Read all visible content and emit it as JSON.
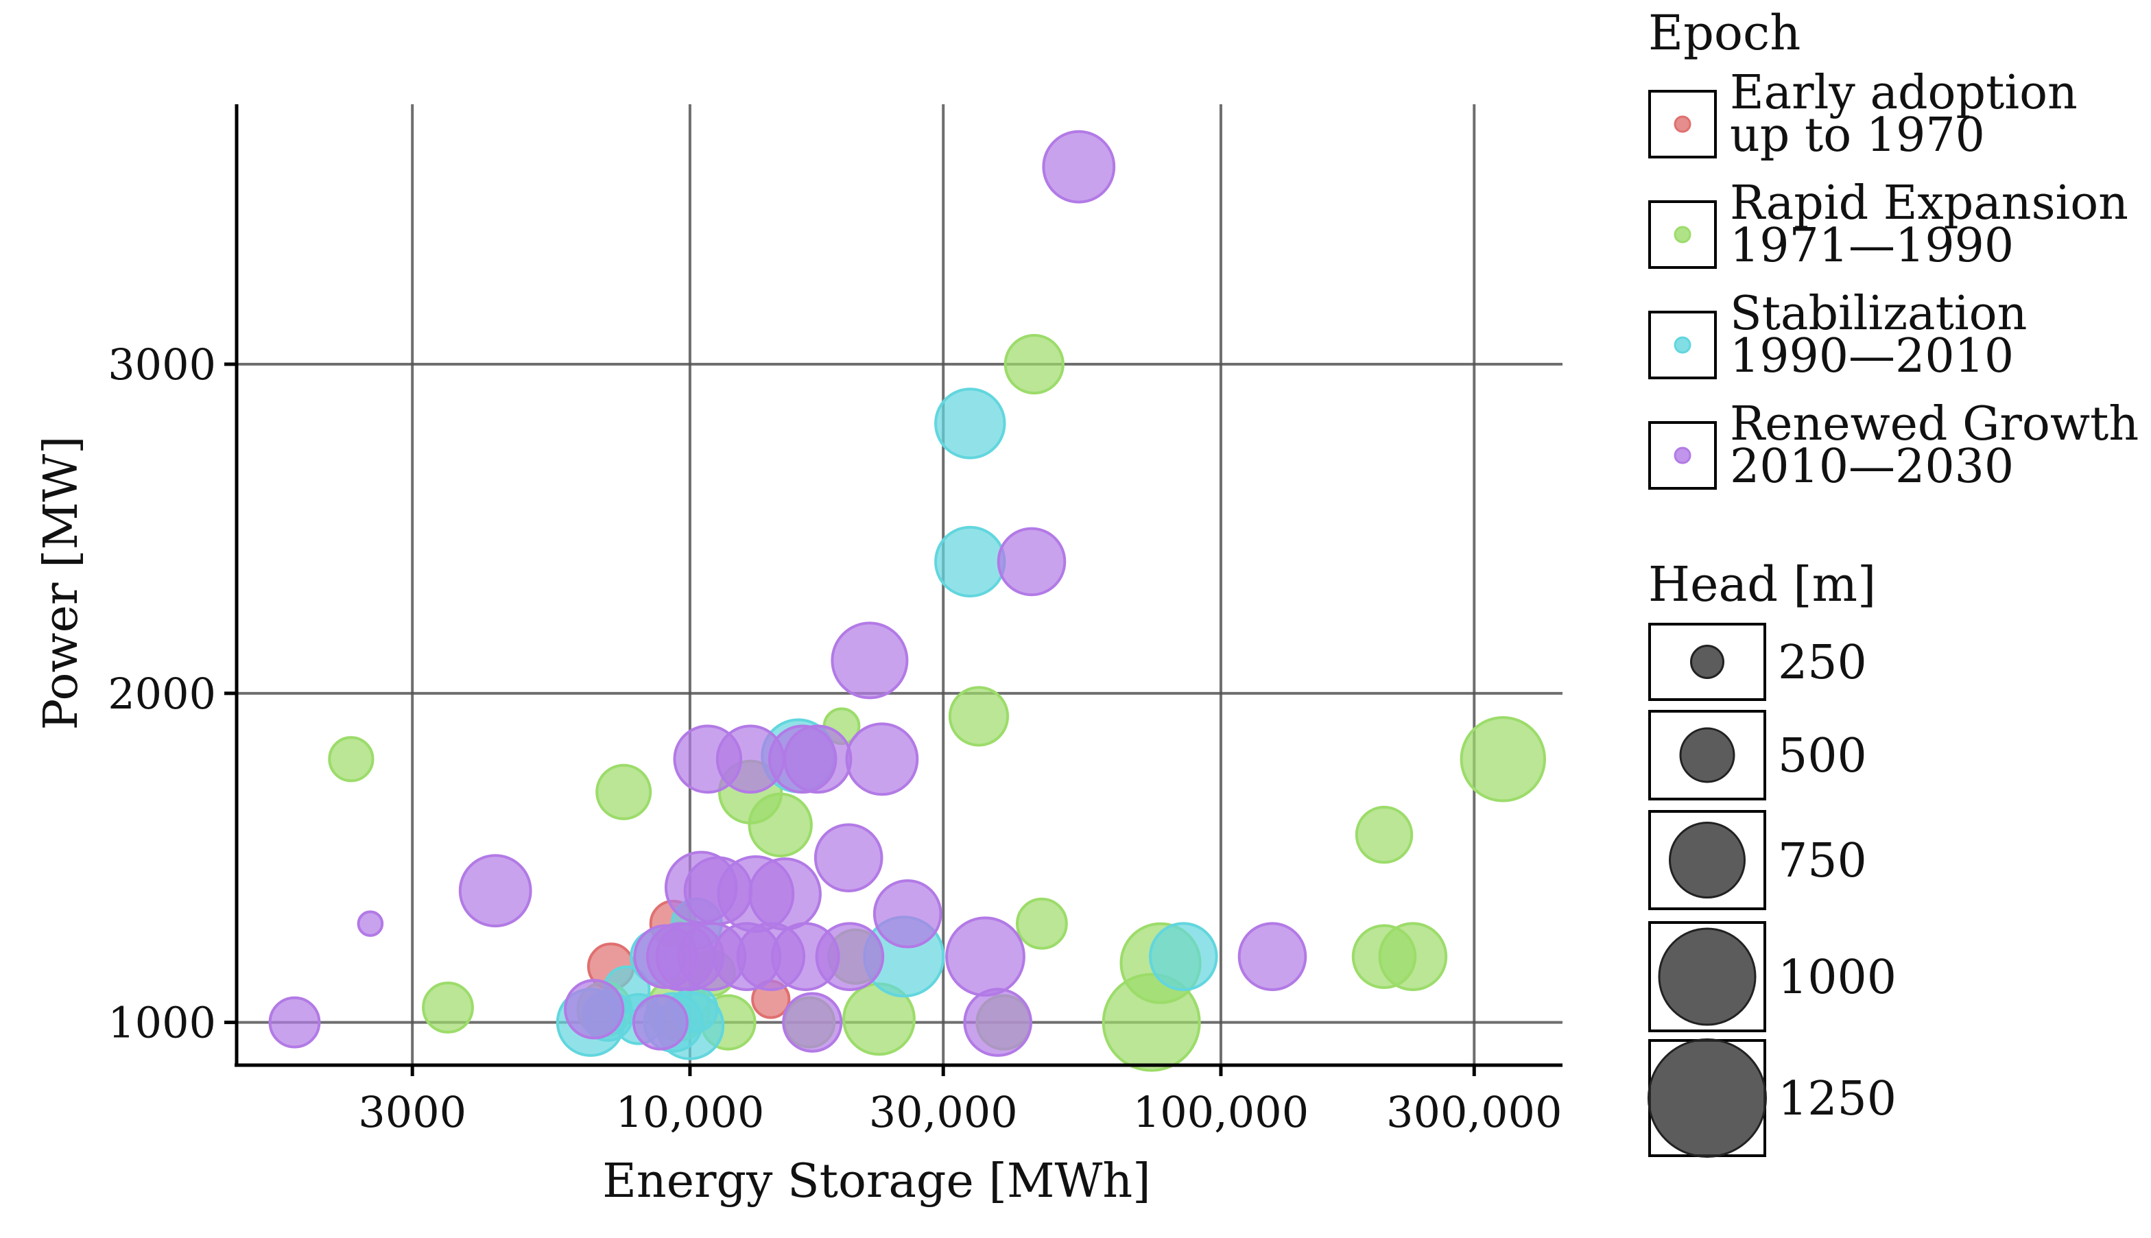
{
  "chart_data": {
    "type": "scatter",
    "title": "",
    "xlabel": "Energy Storage [MWh]",
    "ylabel": "Power [MW]",
    "x_scale": "log",
    "x_lim": [
      1400,
      440000
    ],
    "y_lim": [
      870,
      3790
    ],
    "x_ticks": [
      3000,
      10000,
      30000,
      100000,
      300000
    ],
    "x_tick_labels": [
      "3000",
      "10,000",
      "30,000",
      "100,000",
      "300,000"
    ],
    "y_ticks": [
      1000,
      2000,
      3000
    ],
    "y_tick_labels": [
      "1000",
      "2000",
      "3000"
    ],
    "grid": true,
    "legend_position": "right",
    "color_legend": {
      "title": "Epoch",
      "entries": [
        {
          "key": "early",
          "line1": "Early adoption",
          "line2": " up to 1970",
          "color": "#E07070"
        },
        {
          "key": "rapid",
          "line1": "Rapid Expansion",
          "line2": "1971—1990",
          "color": "#9CDC6A"
        },
        {
          "key": "stab",
          "line1": "Stabilization",
          "line2": "1990—2010",
          "color": "#62D6DE"
        },
        {
          "key": "renew",
          "line1": "Renewed Growth",
          "line2": "2010—2030",
          "color": "#B27AE6"
        }
      ]
    },
    "size_legend": {
      "title": "Head [m]",
      "values": [
        250,
        500,
        750,
        1000,
        1250
      ],
      "labels": [
        "250",
        "500",
        "750",
        "1000",
        "1250"
      ]
    },
    "series": [
      {
        "name": "Early adoption up to 1970",
        "key": "early",
        "points": [
          {
            "x": 9300,
            "y": 1300,
            "head": 400
          },
          {
            "x": 7100,
            "y": 1170,
            "head": 400
          },
          {
            "x": 14200,
            "y": 1070,
            "head": 300
          }
        ]
      },
      {
        "name": "Rapid Expansion 1971—1990",
        "key": "rapid",
        "points": [
          {
            "x": 2300,
            "y": 1800,
            "head": 380
          },
          {
            "x": 3500,
            "y": 1045,
            "head": 450
          },
          {
            "x": 6900,
            "y": 1040,
            "head": 500
          },
          {
            "x": 7500,
            "y": 1700,
            "head": 500
          },
          {
            "x": 13000,
            "y": 1700,
            "head": 600
          },
          {
            "x": 14800,
            "y": 1600,
            "head": 600
          },
          {
            "x": 11800,
            "y": 1000,
            "head": 500
          },
          {
            "x": 11000,
            "y": 1150,
            "head": 400
          },
          {
            "x": 9500,
            "y": 1040,
            "head": 600
          },
          {
            "x": 16800,
            "y": 1000,
            "head": 450
          },
          {
            "x": 19300,
            "y": 1900,
            "head": 280
          },
          {
            "x": 20500,
            "y": 1200,
            "head": 500
          },
          {
            "x": 22700,
            "y": 1010,
            "head": 700
          },
          {
            "x": 35000,
            "y": 1930,
            "head": 550
          },
          {
            "x": 44500,
            "y": 3000,
            "head": 550
          },
          {
            "x": 46000,
            "y": 1300,
            "head": 450
          },
          {
            "x": 39000,
            "y": 1000,
            "head": 500
          },
          {
            "x": 74000,
            "y": 1000,
            "head": 1000
          },
          {
            "x": 77000,
            "y": 1180,
            "head": 800
          },
          {
            "x": 203000,
            "y": 1570,
            "head": 520
          },
          {
            "x": 203000,
            "y": 1200,
            "head": 600
          },
          {
            "x": 230000,
            "y": 1200,
            "head": 650
          },
          {
            "x": 340000,
            "y": 1800,
            "head": 850
          }
        ]
      },
      {
        "name": "Stabilization 1990—2010",
        "key": "stab",
        "points": [
          {
            "x": 6500,
            "y": 1000,
            "head": 650
          },
          {
            "x": 7000,
            "y": 1020,
            "head": 450
          },
          {
            "x": 7600,
            "y": 1100,
            "head": 400
          },
          {
            "x": 8000,
            "y": 1010,
            "head": 450
          },
          {
            "x": 8700,
            "y": 1200,
            "head": 500
          },
          {
            "x": 9300,
            "y": 1000,
            "head": 550
          },
          {
            "x": 10000,
            "y": 990,
            "head": 650
          },
          {
            "x": 10300,
            "y": 1300,
            "head": 450
          },
          {
            "x": 10200,
            "y": 1040,
            "head": 400
          },
          {
            "x": 16000,
            "y": 1810,
            "head": 720
          },
          {
            "x": 25300,
            "y": 1200,
            "head": 800
          },
          {
            "x": 33700,
            "y": 2820,
            "head": 680
          },
          {
            "x": 33700,
            "y": 2400,
            "head": 680
          },
          {
            "x": 85000,
            "y": 1200,
            "head": 650
          }
        ]
      },
      {
        "name": "Renewed Growth 2010—2030",
        "key": "renew",
        "points": [
          {
            "x": 1800,
            "y": 1000,
            "head": 450
          },
          {
            "x": 2500,
            "y": 1300,
            "head": 150
          },
          {
            "x": 4300,
            "y": 1400,
            "head": 700
          },
          {
            "x": 6600,
            "y": 1040,
            "head": 550
          },
          {
            "x": 9000,
            "y": 1200,
            "head": 600
          },
          {
            "x": 9600,
            "y": 1200,
            "head": 650
          },
          {
            "x": 10000,
            "y": 1200,
            "head": 650
          },
          {
            "x": 10500,
            "y": 1410,
            "head": 700
          },
          {
            "x": 11300,
            "y": 1400,
            "head": 650
          },
          {
            "x": 11000,
            "y": 1200,
            "head": 650
          },
          {
            "x": 12800,
            "y": 1200,
            "head": 650
          },
          {
            "x": 14200,
            "y": 1200,
            "head": 650
          },
          {
            "x": 13300,
            "y": 1390,
            "head": 750
          },
          {
            "x": 15100,
            "y": 1390,
            "head": 700
          },
          {
            "x": 10800,
            "y": 1800,
            "head": 650
          },
          {
            "x": 13000,
            "y": 1800,
            "head": 650
          },
          {
            "x": 16300,
            "y": 1800,
            "head": 650
          },
          {
            "x": 17400,
            "y": 1800,
            "head": 650
          },
          {
            "x": 16500,
            "y": 1200,
            "head": 650
          },
          {
            "x": 8800,
            "y": 1000,
            "head": 500
          },
          {
            "x": 17000,
            "y": 1000,
            "head": 550
          },
          {
            "x": 20000,
            "y": 1200,
            "head": 650
          },
          {
            "x": 19900,
            "y": 1500,
            "head": 650
          },
          {
            "x": 23000,
            "y": 1800,
            "head": 700
          },
          {
            "x": 25700,
            "y": 1330,
            "head": 650
          },
          {
            "x": 21800,
            "y": 2100,
            "head": 750
          },
          {
            "x": 36000,
            "y": 1200,
            "head": 780
          },
          {
            "x": 38000,
            "y": 1000,
            "head": 650
          },
          {
            "x": 44000,
            "y": 2400,
            "head": 650
          },
          {
            "x": 54000,
            "y": 3600,
            "head": 700
          },
          {
            "x": 125000,
            "y": 1200,
            "head": 650
          }
        ]
      }
    ]
  }
}
